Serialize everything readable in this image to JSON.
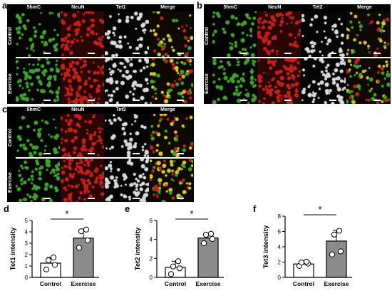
{
  "panels": {
    "a": {
      "letter": "a",
      "channels": [
        "5hmC",
        "NeuN",
        "Tet1",
        "Merge"
      ],
      "rows": [
        "Control",
        "Exercise"
      ]
    },
    "b": {
      "letter": "b",
      "channels": [
        "5hmC",
        "NeuN",
        "Tet2",
        "Merge"
      ],
      "rows": [
        "Control",
        "Exercise"
      ]
    },
    "c": {
      "letter": "c",
      "channels": [
        "5hmC",
        "NeuN",
        "Tet3",
        "Merge"
      ],
      "rows": [
        "Control",
        "Exercise"
      ]
    }
  },
  "colors": {
    "green": "#3fa02a",
    "red": "#c0201a",
    "white": "#d8d8d8",
    "yellow": "#d7c232",
    "bar_exercise": "#8c8c8c",
    "bar_control": "#ffffff"
  },
  "chart_data": [
    {
      "letter": "d",
      "type": "bar",
      "categories": [
        "Control",
        "Exercise"
      ],
      "values": [
        1.25,
        3.45
      ],
      "errors": [
        0.5,
        0.8
      ],
      "points": [
        [
          0.7,
          1.1,
          1.5,
          1.75
        ],
        [
          2.6,
          3.25,
          4.05,
          4.2
        ]
      ],
      "ylabel": "Tet1 intensity",
      "ylim": [
        0,
        5
      ],
      "yticks": [
        0,
        1,
        2,
        3,
        4,
        5
      ],
      "significance": "*"
    },
    {
      "letter": "e",
      "type": "bar",
      "categories": [
        "Control",
        "Exercise"
      ],
      "values": [
        1.05,
        4.15
      ],
      "errors": [
        0.65,
        0.5
      ],
      "points": [
        [
          0.35,
          0.95,
          1.15,
          1.7
        ],
        [
          3.6,
          4.05,
          4.5,
          4.6
        ]
      ],
      "ylabel": "Tet2 intensity",
      "ylim": [
        0,
        6
      ],
      "yticks": [
        0,
        2,
        4,
        6
      ],
      "significance": "*"
    },
    {
      "letter": "f",
      "type": "bar",
      "categories": [
        "Control",
        "Exercise"
      ],
      "values": [
        1.75,
        4.75
      ],
      "errors": [
        0.35,
        1.4
      ],
      "points": [
        [
          1.5,
          1.8,
          1.95,
          2.05
        ],
        [
          3.0,
          3.4,
          5.6,
          6.1
        ]
      ],
      "ylabel": "Tet3 intensity",
      "ylim": [
        0,
        8
      ],
      "yticks": [
        0,
        2,
        4,
        6,
        8
      ],
      "significance": "*"
    }
  ]
}
